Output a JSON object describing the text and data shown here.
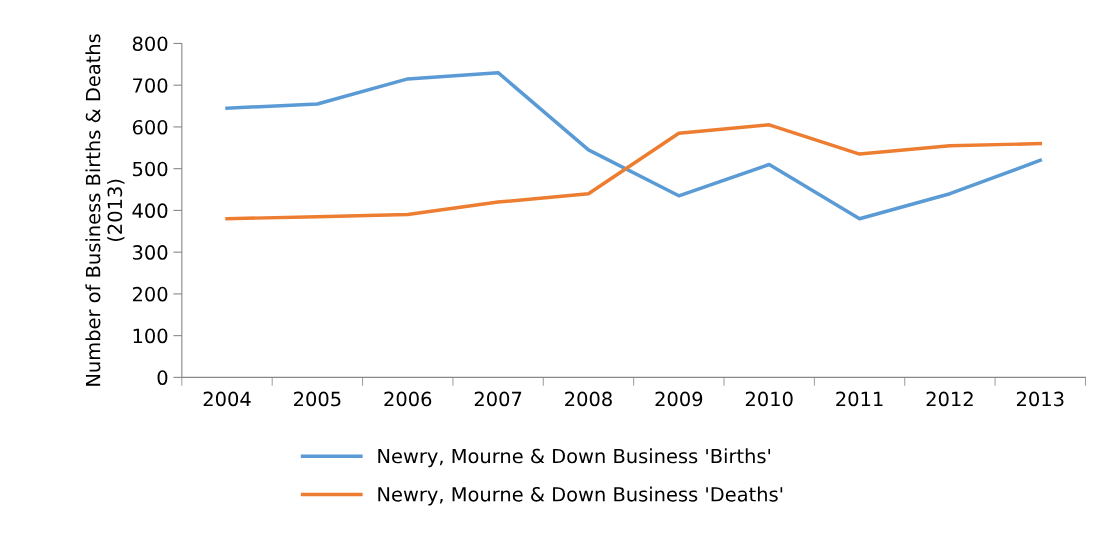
{
  "chart_data": {
    "type": "line",
    "ylabel": "Number of Business Births & Deaths\n(2013)",
    "categories": [
      "2004",
      "2005",
      "2006",
      "2007",
      "2008",
      "2009",
      "2010",
      "2011",
      "2012",
      "2013"
    ],
    "series": [
      {
        "name": "Newry, Mourne & Down Business 'Births'",
        "color": "#5b9bd5",
        "values": [
          645,
          655,
          715,
          730,
          545,
          435,
          510,
          380,
          440,
          520
        ]
      },
      {
        "name": "Newry, Mourne & Down Business 'Deaths'",
        "color": "#ed7d31",
        "values": [
          380,
          385,
          390,
          420,
          440,
          585,
          605,
          535,
          555,
          560
        ]
      }
    ],
    "ylim": [
      0,
      800
    ],
    "yticks": [
      0,
      100,
      200,
      300,
      400,
      500,
      600,
      700,
      800
    ],
    "grid": false,
    "legend": "bottom",
    "marker": "none",
    "line_style": "solid"
  }
}
